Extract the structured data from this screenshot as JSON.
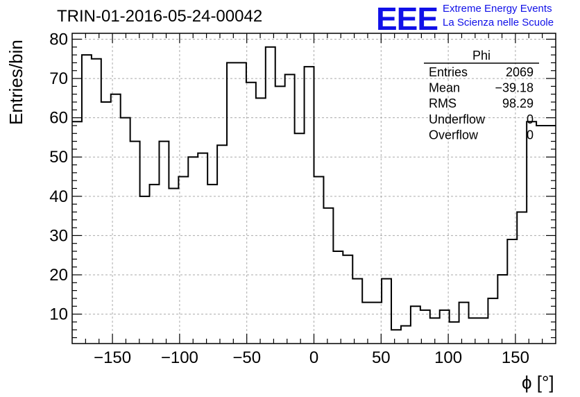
{
  "header": {
    "run_title": "TRIN-01-2016-05-24-00042",
    "logo_text": "EEE",
    "org_line1": "Extreme Energy Events",
    "org_line2": "La Scienza nelle Scuole",
    "brand_color": "#1010e8"
  },
  "stats": {
    "title": "Phi",
    "rows": [
      {
        "label": "Entries",
        "value": "2069"
      },
      {
        "label": "Mean",
        "value": "−39.18"
      },
      {
        "label": "RMS",
        "value": "98.29"
      },
      {
        "label": "Underflow",
        "value": "0"
      },
      {
        "label": "Overflow",
        "value": "0"
      }
    ]
  },
  "chart_data": {
    "type": "bar",
    "style": "step-histogram",
    "xlabel": "ϕ [°]",
    "ylabel": "Entries/bin",
    "xlim": [
      -180,
      180
    ],
    "ylim": [
      2.5,
      81.5
    ],
    "bin_width": 7.2,
    "x_ticks": [
      -150,
      -100,
      -50,
      0,
      50,
      100,
      150
    ],
    "x_tick_labels": [
      "−150",
      "−100",
      "−50",
      "0",
      "50",
      "100",
      "150"
    ],
    "y_ticks": [
      10,
      20,
      30,
      40,
      50,
      60,
      70,
      80
    ],
    "grid": true,
    "values": [
      59,
      76,
      75,
      64,
      66,
      60,
      54,
      40,
      43,
      54,
      42,
      45,
      50,
      51,
      43,
      53,
      74,
      74,
      69,
      65,
      78,
      68,
      71,
      56,
      73,
      45,
      37,
      26,
      25,
      19,
      13,
      13,
      19,
      6,
      7,
      12,
      11,
      9,
      11,
      8,
      13,
      9,
      9,
      14,
      20,
      29,
      36,
      59,
      58,
      58
    ]
  }
}
